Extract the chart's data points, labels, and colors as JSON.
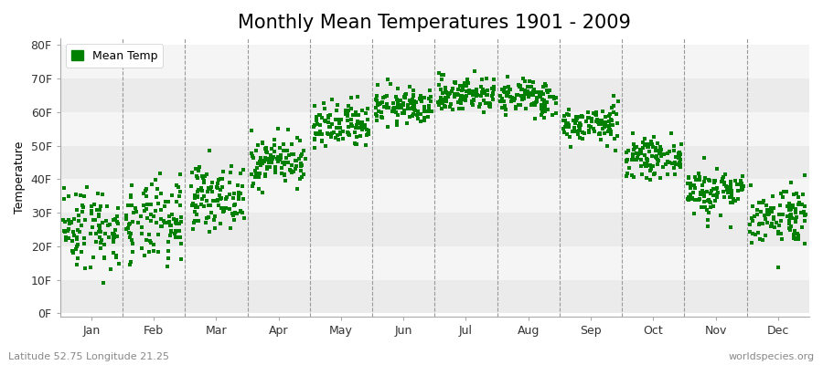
{
  "title": "Monthly Mean Temperatures 1901 - 2009",
  "ylabel": "Temperature",
  "xlabel_labels": [
    "Jan",
    "Feb",
    "Mar",
    "Apr",
    "May",
    "Jun",
    "Jul",
    "Aug",
    "Sep",
    "Oct",
    "Nov",
    "Dec"
  ],
  "ytick_labels": [
    "0F",
    "10F",
    "20F",
    "30F",
    "40F",
    "50F",
    "60F",
    "70F",
    "80F"
  ],
  "ytick_values": [
    0,
    10,
    20,
    30,
    40,
    50,
    60,
    70,
    80
  ],
  "ylim": [
    -1,
    82
  ],
  "dot_color": "#008000",
  "background_color": "#ffffff",
  "legend_label": "Mean Temp",
  "footer_left": "Latitude 52.75 Longitude 21.25",
  "footer_right": "worldspecies.org",
  "title_fontsize": 15,
  "axis_fontsize": 9,
  "legend_fontsize": 9,
  "footer_fontsize": 8,
  "num_years": 109,
  "monthly_mean_C": [
    -3.5,
    -3.0,
    1.5,
    7.5,
    13.0,
    16.5,
    18.5,
    18.0,
    13.5,
    8.0,
    2.5,
    -1.5
  ],
  "monthly_std_C": [
    3.5,
    3.5,
    2.5,
    2.0,
    2.0,
    1.5,
    1.5,
    1.5,
    1.5,
    1.5,
    2.0,
    2.5
  ],
  "band_colors": [
    "#ebebeb",
    "#f5f5f5"
  ],
  "hband_ranges": [
    [
      0,
      10
    ],
    [
      10,
      20
    ],
    [
      20,
      30
    ],
    [
      30,
      40
    ],
    [
      40,
      50
    ],
    [
      50,
      60
    ],
    [
      60,
      70
    ],
    [
      70,
      80
    ]
  ]
}
